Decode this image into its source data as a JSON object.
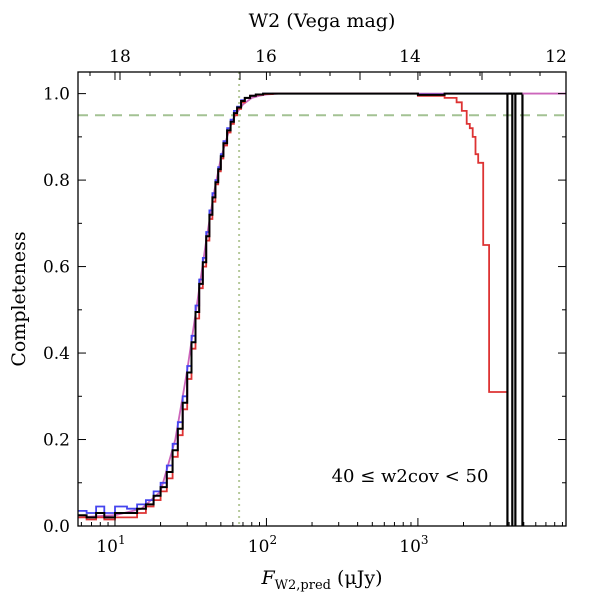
{
  "chart_data": {
    "type": "line",
    "xscale": "log",
    "xlim": [
      5.7,
      9500
    ],
    "ylim": [
      0,
      1.05
    ],
    "xlabel_main": "F",
    "xlabel_sub": "W2,pred",
    "xlabel_unit": " (μJy)",
    "ylabel": "Completeness",
    "top_xlabel": "W2 (Vega mag)",
    "annotation": "40 ≤ w2cov < 50",
    "x_ticks": [
      {
        "value": 10,
        "base": "10",
        "exp": "1"
      },
      {
        "value": 100,
        "base": "10",
        "exp": "2"
      },
      {
        "value": 1000,
        "base": "10",
        "exp": "3"
      }
    ],
    "y_ticks": [
      "0.0",
      "0.2",
      "0.4",
      "0.6",
      "0.8",
      "1.0"
    ],
    "top_ticks": [
      "18",
      "16",
      "14",
      "12"
    ],
    "reference_lines": [
      {
        "orientation": "horizontal",
        "value": 0.95,
        "style": "dashed",
        "color": "#a3c293"
      },
      {
        "orientation": "vertical",
        "value": 66,
        "style": "dotted",
        "color": "#b5c99a"
      }
    ],
    "series": [
      {
        "color": "#4444ee",
        "x": [
          5.7,
          6.5,
          7.5,
          8.5,
          10,
          12,
          14,
          16,
          18,
          20,
          22,
          24,
          26,
          28,
          30,
          32,
          34,
          36,
          38,
          40,
          42,
          44,
          46,
          48,
          50,
          52,
          55,
          58,
          61,
          64,
          68,
          72,
          78,
          85,
          95,
          110,
          400,
          1000,
          1500,
          3000,
          3900
        ],
        "y": [
          0.035,
          0.03,
          0.045,
          0.03,
          0.045,
          0.04,
          0.05,
          0.06,
          0.08,
          0.1,
          0.14,
          0.19,
          0.24,
          0.3,
          0.37,
          0.44,
          0.51,
          0.57,
          0.62,
          0.68,
          0.73,
          0.77,
          0.8,
          0.83,
          0.86,
          0.89,
          0.92,
          0.94,
          0.96,
          0.97,
          0.985,
          0.99,
          0.995,
          0.998,
          1.0,
          1.0,
          1.0,
          0.998,
          1.0,
          1.0,
          1.0
        ]
      },
      {
        "color": "#dd3333",
        "x": [
          5.7,
          6.5,
          7.5,
          8.5,
          10,
          12,
          14,
          16,
          18,
          20,
          22,
          24,
          26,
          28,
          30,
          32,
          34,
          36,
          38,
          40,
          42,
          44,
          46,
          48,
          50,
          52,
          55,
          58,
          61,
          64,
          68,
          72,
          78,
          85,
          95,
          110,
          400,
          1000,
          1500,
          1800,
          1950,
          2100,
          2200,
          2300,
          2400,
          2500,
          2700,
          2950,
          3300,
          3900
        ],
        "y": [
          0.02,
          0.015,
          0.02,
          0.015,
          0.02,
          0.02,
          0.03,
          0.045,
          0.06,
          0.08,
          0.11,
          0.16,
          0.21,
          0.27,
          0.34,
          0.41,
          0.48,
          0.55,
          0.6,
          0.66,
          0.71,
          0.75,
          0.79,
          0.82,
          0.85,
          0.88,
          0.91,
          0.93,
          0.95,
          0.965,
          0.98,
          0.99,
          0.995,
          0.997,
          0.999,
          1.0,
          1.0,
          0.995,
          0.99,
          0.98,
          0.96,
          0.93,
          0.92,
          0.9,
          0.86,
          0.84,
          0.65,
          0.31,
          0.31,
          0.31
        ]
      },
      {
        "color": "#000000",
        "x": [
          5.7,
          6.5,
          7.5,
          8.5,
          10,
          12,
          14,
          16,
          18,
          20,
          22,
          24,
          26,
          28,
          30,
          32,
          34,
          36,
          38,
          40,
          42,
          44,
          46,
          48,
          50,
          52,
          55,
          58,
          61,
          64,
          68,
          72,
          78,
          85,
          95,
          110,
          400,
          1000,
          1500,
          3000,
          3900
        ],
        "y": [
          0.025,
          0.02,
          0.03,
          0.02,
          0.03,
          0.03,
          0.04,
          0.05,
          0.07,
          0.09,
          0.125,
          0.175,
          0.225,
          0.285,
          0.355,
          0.425,
          0.495,
          0.56,
          0.61,
          0.67,
          0.72,
          0.76,
          0.795,
          0.825,
          0.855,
          0.885,
          0.915,
          0.935,
          0.955,
          0.968,
          0.983,
          0.99,
          0.995,
          0.998,
          1.0,
          1.0,
          1.0,
          0.997,
          1.0,
          1.0,
          1.0
        ]
      }
    ],
    "spikes": {
      "color": "#000000",
      "x": [
        3900,
        4200,
        4400,
        4900
      ],
      "y_top": 1.0,
      "y_bottom": 0.0
    },
    "model_curve": {
      "color": "#cc66bb",
      "x": [
        5.7,
        10,
        15,
        20,
        25,
        30,
        35,
        40,
        45,
        50,
        55,
        60,
        65,
        70,
        80,
        90,
        100,
        120,
        200,
        1000,
        5000,
        9500
      ],
      "y": [
        0.02,
        0.025,
        0.04,
        0.08,
        0.2,
        0.36,
        0.52,
        0.66,
        0.77,
        0.85,
        0.9,
        0.94,
        0.96,
        0.975,
        0.99,
        0.995,
        0.998,
        1.0,
        1.0,
        1.0,
        1.0,
        1.0
      ]
    }
  }
}
